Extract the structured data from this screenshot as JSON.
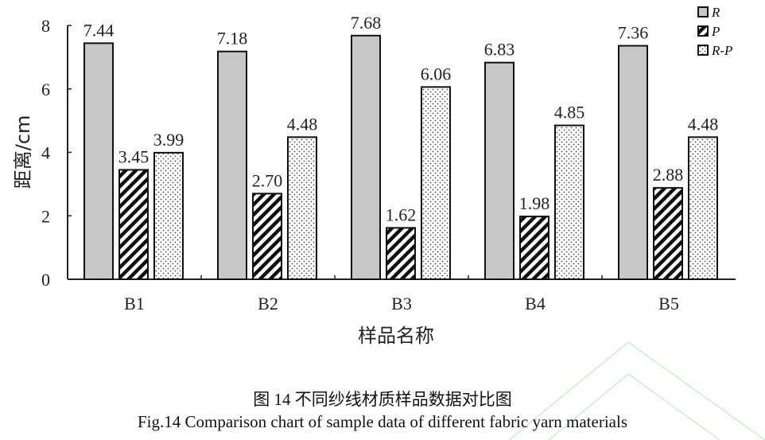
{
  "chart_data": {
    "type": "bar",
    "categories": [
      "B1",
      "B2",
      "B3",
      "B4",
      "B5"
    ],
    "series": [
      {
        "name": "R",
        "values": [
          7.44,
          7.18,
          7.68,
          6.83,
          7.36
        ],
        "fill": "gray"
      },
      {
        "name": "P",
        "values": [
          3.45,
          2.7,
          1.62,
          1.98,
          2.88
        ],
        "fill": "diagonal-hatch"
      },
      {
        "name": "R-P",
        "values": [
          3.99,
          4.48,
          6.06,
          4.85,
          4.48
        ],
        "fill": "dots"
      }
    ],
    "data_labels": [
      [
        "7.44",
        "7.18",
        "7.68",
        "6.83",
        "7.36"
      ],
      [
        "3.45",
        "2.70",
        "1.62",
        "1.98",
        "2.88"
      ],
      [
        "3.99",
        "4.48",
        "6.06",
        "4.85",
        "4.48"
      ]
    ],
    "xlabel": "样品名称",
    "ylabel": "距离/cm",
    "ylim": [
      0,
      8
    ],
    "yticks": [
      "0",
      "2",
      "4",
      "6",
      "8"
    ],
    "grid": false,
    "legend_position": "top-right",
    "colors": {
      "R": "#c8c8c8",
      "axis": "#222222"
    }
  },
  "caption": {
    "zh": "图 14  不同纱线材质样品数据对比图",
    "en": "Fig.14 Comparison chart of sample data of different fabric yarn materials"
  }
}
